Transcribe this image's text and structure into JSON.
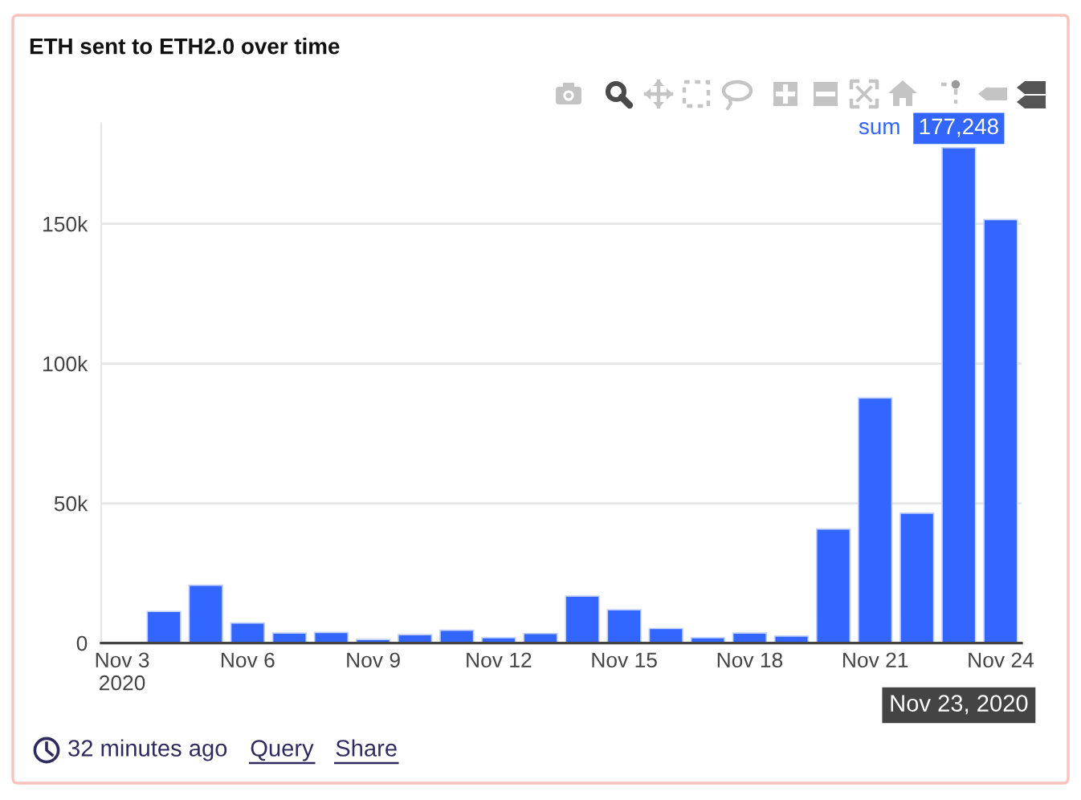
{
  "chart_data": {
    "type": "bar",
    "title": "ETH sent to ETH2.0 over time",
    "x": [
      "2020-11-04",
      "2020-11-05",
      "2020-11-06",
      "2020-11-07",
      "2020-11-08",
      "2020-11-09",
      "2020-11-10",
      "2020-11-11",
      "2020-11-12",
      "2020-11-13",
      "2020-11-14",
      "2020-11-15",
      "2020-11-16",
      "2020-11-17",
      "2020-11-18",
      "2020-11-19",
      "2020-11-20",
      "2020-11-21",
      "2020-11-22",
      "2020-11-23",
      "2020-11-24"
    ],
    "series": [
      {
        "name": "sum",
        "color": "#3366ff",
        "values": [
          11300,
          20700,
          7200,
          3600,
          3800,
          1300,
          3000,
          4600,
          1900,
          3400,
          16800,
          11900,
          5200,
          1900,
          3600,
          2500,
          40800,
          87700,
          46500,
          177248,
          151500
        ],
        "value_labels": [
          null,
          null,
          null,
          null,
          null,
          null,
          null,
          null,
          null,
          null,
          null,
          null,
          null,
          null,
          null,
          null,
          null,
          null,
          null,
          "177,248",
          null
        ]
      }
    ],
    "xlim": [
      "2020-11-02T12:00",
      "2020-11-24T12:00"
    ],
    "xticks": [
      {
        "value": "2020-11-03",
        "label": "Nov 3\n2020"
      },
      {
        "value": "2020-11-06",
        "label": "Nov 6"
      },
      {
        "value": "2020-11-09",
        "label": "Nov 9"
      },
      {
        "value": "2020-11-12",
        "label": "Nov 12"
      },
      {
        "value": "2020-11-15",
        "label": "Nov 15"
      },
      {
        "value": "2020-11-18",
        "label": "Nov 18"
      },
      {
        "value": "2020-11-21",
        "label": "Nov 21"
      },
      {
        "value": "2020-11-24",
        "label": "Nov 24"
      }
    ],
    "ylim": [
      0,
      186000
    ],
    "yticks": [
      0,
      {
        "value": 50000,
        "label": "50k"
      },
      {
        "value": 100000,
        "label": "100k"
      },
      {
        "value": 150000,
        "label": "150k"
      }
    ],
    "grid": "y",
    "annotations": [
      {
        "text": "Nov 23, 2020",
        "x": "2020-11-23",
        "y": 0
      },
      "32 minutes ago",
      "Query",
      "Share"
    ]
  }
}
